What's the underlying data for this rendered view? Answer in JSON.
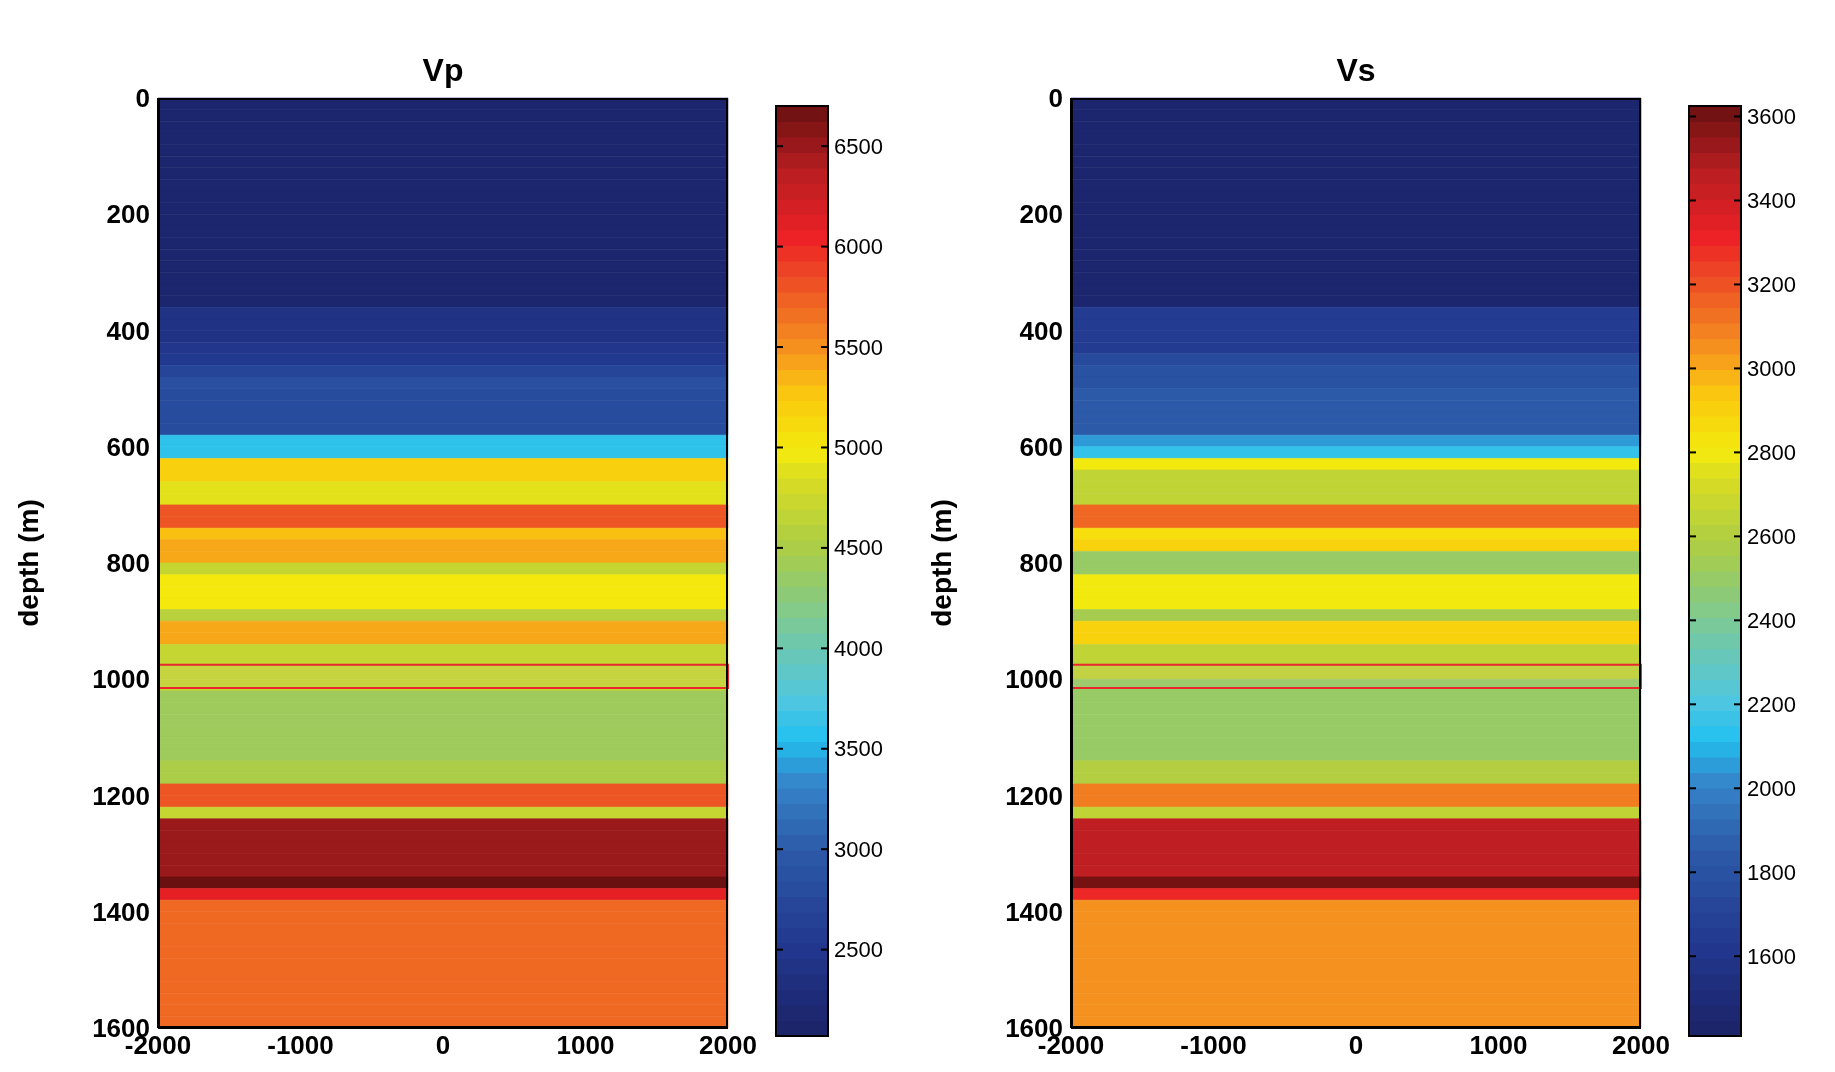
{
  "chart_data": [
    {
      "type": "heatmap",
      "title": "Vp",
      "ylabel": "depth (m)",
      "xlim": [
        -2000,
        2000
      ],
      "xticks": [
        -2000,
        -1000,
        0,
        1000,
        2000
      ],
      "ylim": [
        1600,
        0
      ],
      "yticks": [
        0,
        200,
        400,
        600,
        800,
        1000,
        1200,
        1400,
        1600
      ],
      "clim": [
        2070,
        6700
      ],
      "cticks": [
        2500,
        3000,
        3500,
        4000,
        4500,
        5000,
        5500,
        6000,
        6500
      ],
      "bands": [
        {
          "axis": "y",
          "from": 975,
          "to": 1015,
          "color": "#d8c8b8"
        }
      ],
      "cells": [
        [
          2150
        ],
        [
          2150
        ],
        [
          2150
        ],
        [
          2150
        ],
        [
          2150
        ],
        [
          2150
        ],
        [
          2150
        ],
        [
          2150
        ],
        [
          2150
        ],
        [
          2150
        ],
        [
          2150
        ],
        [
          2150
        ],
        [
          2150
        ],
        [
          2150
        ],
        [
          2150
        ],
        [
          2150
        ],
        [
          2150
        ],
        [
          2150
        ],
        [
          2400
        ],
        [
          2400
        ],
        [
          2400
        ],
        [
          2500
        ],
        [
          2550
        ],
        [
          2700
        ],
        [
          2850
        ],
        [
          2800
        ],
        [
          2800
        ],
        [
          2800
        ],
        [
          2800
        ],
        [
          3600
        ],
        [
          3600
        ],
        [
          5200
        ],
        [
          5200
        ],
        [
          4900
        ],
        [
          4900
        ],
        [
          5800
        ],
        [
          5800
        ],
        [
          5300
        ],
        [
          5400
        ],
        [
          5400
        ],
        [
          4700
        ],
        [
          5000
        ],
        [
          5000
        ],
        [
          5000
        ],
        [
          4600
        ],
        [
          5400
        ],
        [
          5400
        ],
        [
          4700
        ],
        [
          4700
        ],
        [
          4700
        ],
        [
          4700
        ],
        [
          4400
        ],
        [
          4400
        ],
        [
          4400
        ],
        [
          4400
        ],
        [
          4400
        ],
        [
          4400
        ],
        [
          4500
        ],
        [
          4500
        ],
        [
          5800
        ],
        [
          5800
        ],
        [
          4700
        ],
        [
          6500
        ],
        [
          6500
        ],
        [
          6500
        ],
        [
          6500
        ],
        [
          6500
        ],
        [
          6700
        ],
        [
          6100
        ],
        [
          5700
        ],
        [
          5700
        ],
        [
          5700
        ],
        [
          5700
        ],
        [
          5700
        ],
        [
          5700
        ],
        [
          5700
        ],
        [
          5700
        ],
        [
          5700
        ],
        [
          5700
        ],
        [
          5700
        ]
      ]
    },
    {
      "type": "heatmap",
      "title": "Vs",
      "ylabel": "depth (m)",
      "xlim": [
        -2000,
        2000
      ],
      "xticks": [
        -2000,
        -1000,
        0,
        1000,
        2000
      ],
      "ylim": [
        1600,
        0
      ],
      "yticks": [
        0,
        200,
        400,
        600,
        800,
        1000,
        1200,
        1400,
        1600
      ],
      "clim": [
        1410,
        3625
      ],
      "cticks": [
        1600,
        1800,
        2000,
        2200,
        2400,
        2600,
        2800,
        3000,
        3200,
        3400,
        3600
      ],
      "bands": [
        {
          "axis": "y",
          "from": 975,
          "to": 1015,
          "color": "#d8c8b8"
        }
      ],
      "cells": [
        [
          1450
        ],
        [
          1450
        ],
        [
          1450
        ],
        [
          1450
        ],
        [
          1450
        ],
        [
          1450
        ],
        [
          1450
        ],
        [
          1450
        ],
        [
          1450
        ],
        [
          1450
        ],
        [
          1450
        ],
        [
          1450
        ],
        [
          1450
        ],
        [
          1450
        ],
        [
          1450
        ],
        [
          1450
        ],
        [
          1450
        ],
        [
          1450
        ],
        [
          1650
        ],
        [
          1650
        ],
        [
          1650
        ],
        [
          1650
        ],
        [
          1750
        ],
        [
          1800
        ],
        [
          1800
        ],
        [
          1850
        ],
        [
          1850
        ],
        [
          1850
        ],
        [
          1850
        ],
        [
          2050
        ],
        [
          2150
        ],
        [
          2800
        ],
        [
          2650
        ],
        [
          2650
        ],
        [
          2650
        ],
        [
          3150
        ],
        [
          3150
        ],
        [
          2850
        ],
        [
          2900
        ],
        [
          2500
        ],
        [
          2500
        ],
        [
          2800
        ],
        [
          2800
        ],
        [
          2800
        ],
        [
          2550
        ],
        [
          2900
        ],
        [
          2900
        ],
        [
          2650
        ],
        [
          2650
        ],
        [
          2650
        ],
        [
          2500
        ],
        [
          2500
        ],
        [
          2500
        ],
        [
          2500
        ],
        [
          2500
        ],
        [
          2500
        ],
        [
          2500
        ],
        [
          2600
        ],
        [
          2600
        ],
        [
          3100
        ],
        [
          3100
        ],
        [
          2650
        ],
        [
          3450
        ],
        [
          3450
        ],
        [
          3450
        ],
        [
          3450
        ],
        [
          3450
        ],
        [
          3600
        ],
        [
          3300
        ],
        [
          3050
        ],
        [
          3050
        ],
        [
          3050
        ],
        [
          3050
        ],
        [
          3050
        ],
        [
          3050
        ],
        [
          3050
        ],
        [
          3050
        ],
        [
          3050
        ],
        [
          3050
        ],
        [
          3050
        ]
      ]
    }
  ]
}
